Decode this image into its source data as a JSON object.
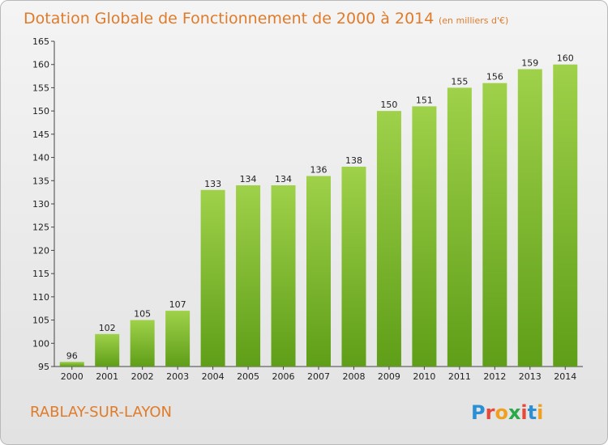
{
  "chart_data": {
    "type": "bar",
    "title": "Dotation Globale de Fonctionnement de 2000 à 2014",
    "subtitle": "(en milliers d'€)",
    "categories": [
      "2000",
      "2001",
      "2002",
      "2003",
      "2004",
      "2005",
      "2006",
      "2007",
      "2008",
      "2009",
      "2010",
      "2011",
      "2012",
      "2013",
      "2014"
    ],
    "values": [
      96,
      102,
      105,
      107,
      133,
      134,
      134,
      136,
      138,
      150,
      151,
      155,
      156,
      159,
      160
    ],
    "data_labels": [
      "96",
      "102",
      "105",
      "107",
      "133",
      "134",
      "134",
      "136",
      "138",
      "150",
      "151",
      "155",
      "156",
      "159",
      "160"
    ],
    "ylim": [
      95,
      165
    ],
    "yticks": [
      95,
      100,
      105,
      110,
      115,
      120,
      125,
      130,
      135,
      140,
      145,
      150,
      155,
      160,
      165
    ],
    "grid": false,
    "bar_color": "#7bbf2e",
    "xlabel": "",
    "ylabel": ""
  },
  "footer": {
    "commune": "RABLAY-SUR-LAYON",
    "logo_text": "Proxiti"
  },
  "colors": {
    "title": "#e07b2a",
    "bar_top": "#9fd14a",
    "bar_bottom": "#5f9e18"
  }
}
